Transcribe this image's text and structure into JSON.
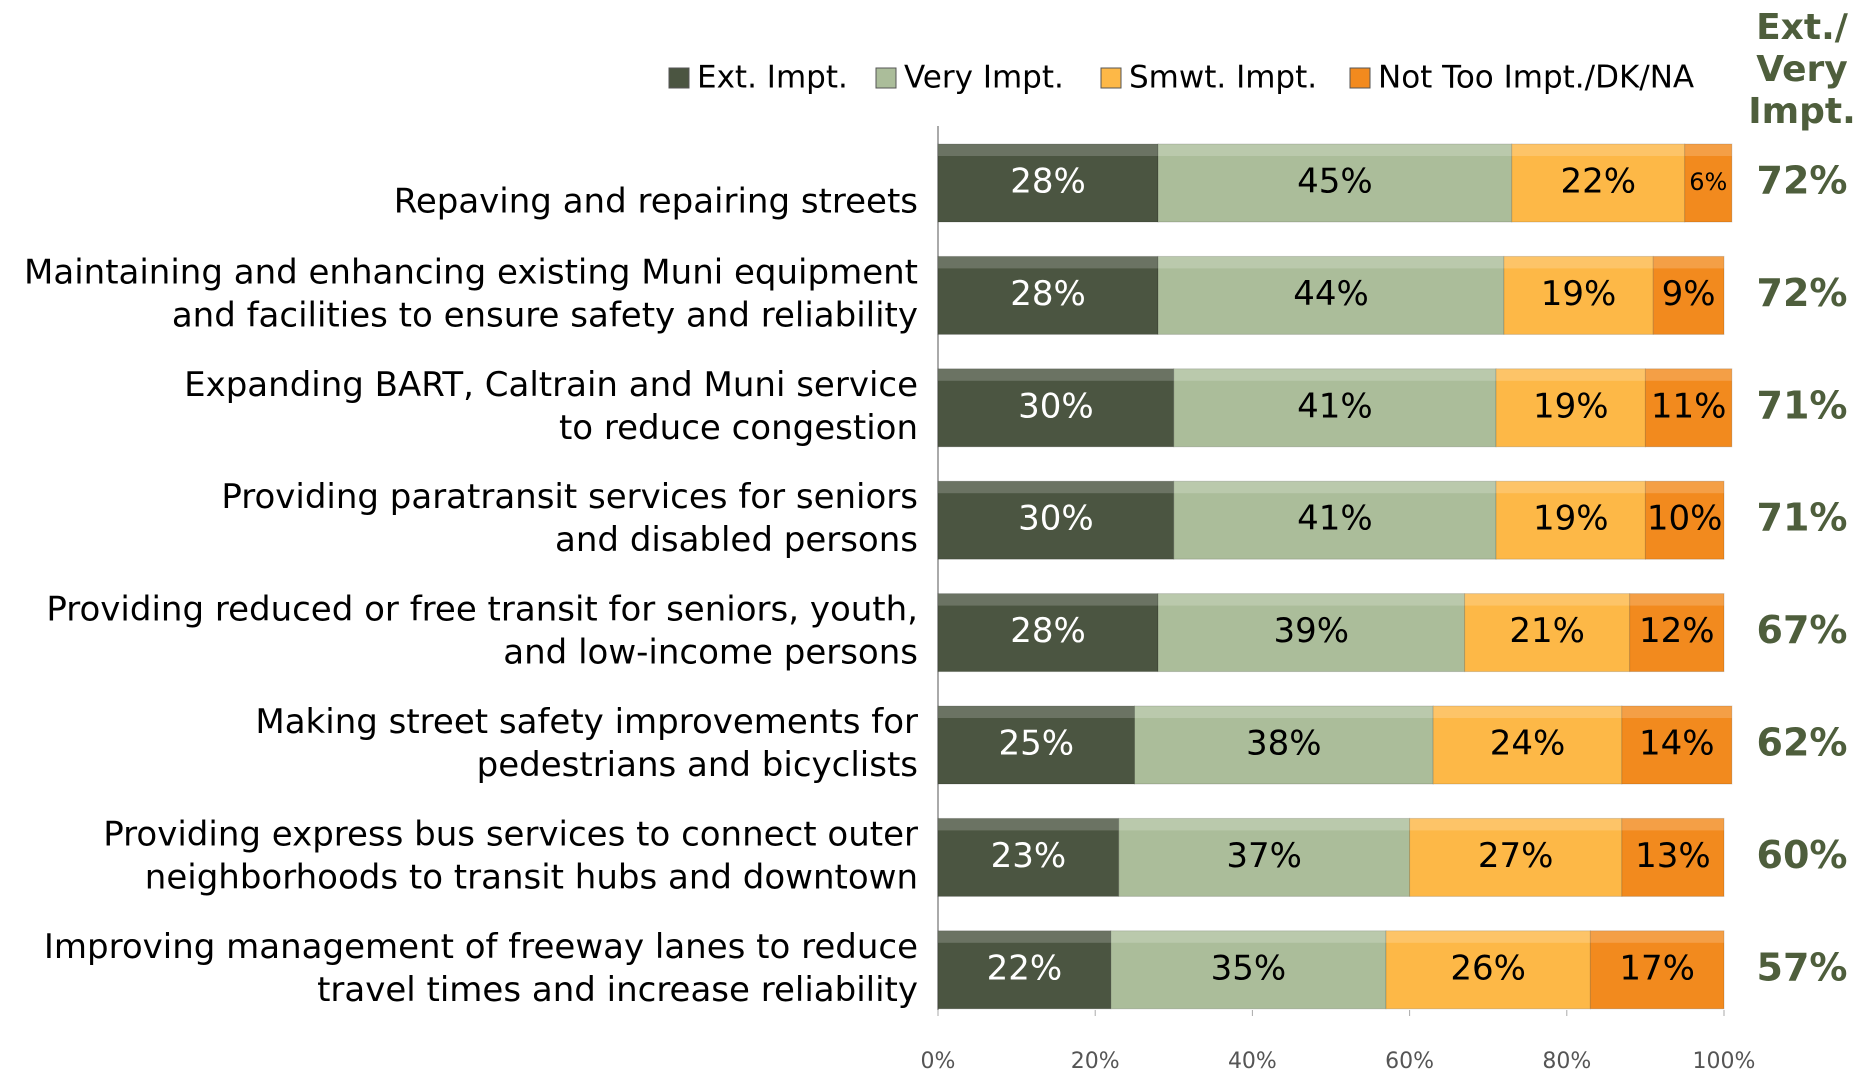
{
  "chart_data": {
    "type": "stacked-bar-horizontal",
    "categories": [
      [
        "Repaving and repairing streets"
      ],
      [
        "Maintaining and enhancing existing Muni equipment",
        "and facilities to ensure safety and reliability"
      ],
      [
        "Expanding BART, Caltrain and Muni service",
        "to reduce congestion"
      ],
      [
        "Providing paratransit services for seniors",
        "and disabled persons"
      ],
      [
        "Providing reduced or free transit for seniors, youth,",
        "and low-income persons"
      ],
      [
        "Making street safety improvements for",
        "pedestrians and bicyclists"
      ],
      [
        "Providing express bus services to connect outer",
        "neighborhoods to transit hubs and downtown"
      ],
      [
        "Improving management of freeway lanes to reduce",
        "travel times and increase reliability"
      ]
    ],
    "series": [
      {
        "name": "Ext. Impt.",
        "color": "#4b5541",
        "label_color": "#ffffff",
        "values": [
          28,
          28,
          30,
          30,
          28,
          25,
          23,
          22
        ],
        "value_labels": [
          "28%",
          "28%",
          "30%",
          "30%",
          "28%",
          "25%",
          "23%",
          "22%"
        ]
      },
      {
        "name": "Very Impt.",
        "color": "#abbd9a",
        "label_color": "#000000",
        "values": [
          45,
          44,
          41,
          41,
          39,
          38,
          37,
          35
        ],
        "value_labels": [
          "45%",
          "44%",
          "41%",
          "41%",
          "39%",
          "38%",
          "37%",
          "35%"
        ]
      },
      {
        "name": "Smwt. Impt.",
        "color": "#fdb847",
        "label_color": "#000000",
        "values": [
          22,
          19,
          19,
          19,
          21,
          24,
          27,
          26
        ],
        "value_labels": [
          "22%",
          "19%",
          "19%",
          "19%",
          "21%",
          "24%",
          "27%",
          "26%"
        ]
      },
      {
        "name": "Not Too Impt./DK/NA",
        "color": "#f28a1e",
        "label_color": "#000000",
        "values": [
          6,
          9,
          11,
          10,
          12,
          14,
          13,
          17
        ],
        "value_labels": [
          "6%",
          "9%",
          "11%",
          "10%",
          "12%",
          "14%",
          "13%",
          "17%"
        ]
      }
    ],
    "totals": {
      "title": [
        "Ext./",
        "Very",
        "Impt."
      ],
      "color": "#4e5e3c",
      "values": [
        72,
        72,
        71,
        71,
        67,
        62,
        60,
        57
      ],
      "value_labels": [
        "72%",
        "72%",
        "71%",
        "71%",
        "67%",
        "62%",
        "60%",
        "57%"
      ]
    },
    "xlim": [
      0,
      100
    ],
    "xticks": [
      {
        "value": 0,
        "label": "0%"
      },
      {
        "value": 20,
        "label": "20%"
      },
      {
        "value": 40,
        "label": "40%"
      },
      {
        "value": 60,
        "label": "60%"
      },
      {
        "value": 80,
        "label": "80%"
      },
      {
        "value": 100,
        "label": "100%"
      }
    ]
  }
}
